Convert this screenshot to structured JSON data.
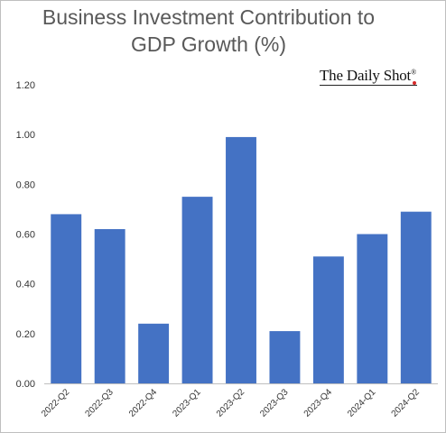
{
  "chart_data": {
    "type": "bar",
    "title_lines": [
      "Business Investment Contribution to",
      "GDP Growth (%)"
    ],
    "source": "The Daily Shot",
    "source_mark": "®",
    "categories": [
      "2022-Q2",
      "2022-Q3",
      "2022-Q4",
      "2023-Q1",
      "2023-Q2",
      "2023-Q3",
      "2023-Q4",
      "2024-Q1",
      "2024-Q2"
    ],
    "values": [
      0.68,
      0.62,
      0.24,
      0.75,
      0.99,
      0.21,
      0.51,
      0.6,
      0.69
    ],
    "ylim": [
      0,
      1.2
    ],
    "yticks": [
      "0.00",
      "0.20",
      "0.40",
      "0.60",
      "0.80",
      "1.00",
      "1.20"
    ],
    "grid": false,
    "bar_color": "#4472c4",
    "axis_color": "#bfbfbf",
    "text_color": "#595959"
  }
}
